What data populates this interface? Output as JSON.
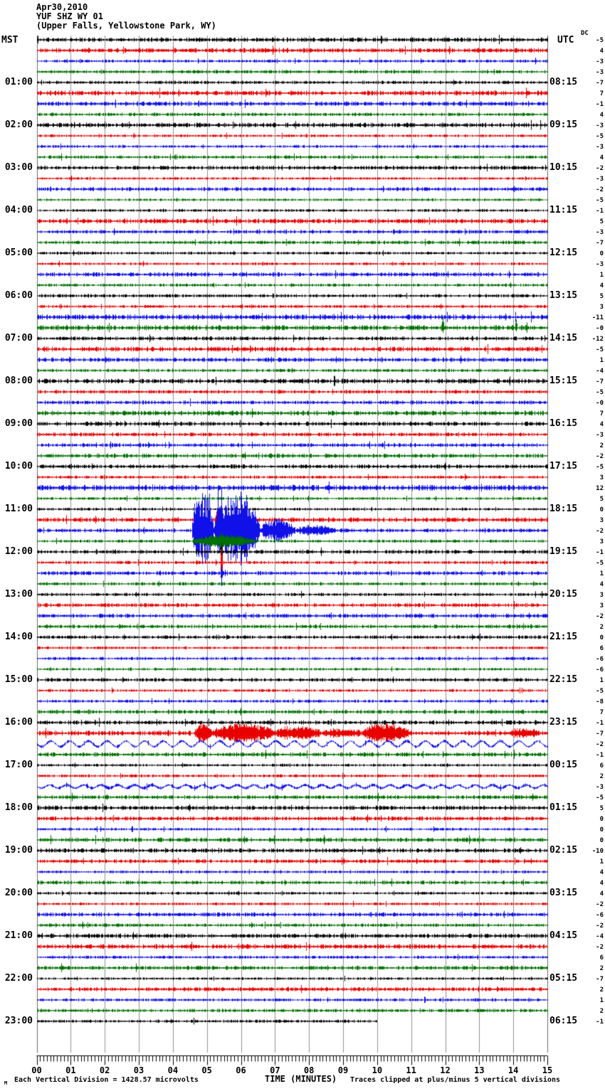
{
  "title": {
    "date": "Apr30,2010",
    "station": "YUF SHZ WY 01",
    "location": "(Upper Falls, Yellowstone Park, WY)"
  },
  "labels": {
    "left_header": "MST",
    "right_header": "UTC",
    "dc_header": "DC",
    "corner_mark": "M"
  },
  "axis": {
    "title": "TIME (MINUTES)",
    "ticks": [
      "00",
      "01",
      "02",
      "03",
      "04",
      "05",
      "06",
      "07",
      "08",
      "09",
      "10",
      "11",
      "12",
      "13",
      "14",
      "15"
    ],
    "minutes": 15,
    "minor_per_minute": 10
  },
  "footer": {
    "left": "Each Vertical Division = 1428.57 microvolts",
    "right": "Traces clipped at plus/minus 5 vertical divisions"
  },
  "chart_data": {
    "type": "line",
    "kind": "helicorder-seismogram",
    "title": "YUF SHZ WY 01 (Upper Falls, Yellowstone Park, WY) Apr30,2010",
    "xlabel": "TIME (MINUTES)",
    "x_range": [
      0,
      15
    ],
    "row_minutes": 15,
    "rows_per_hour": 4,
    "clip_divisions": 5,
    "microvolts_per_division": "1428.57",
    "grid": true,
    "color_cycle": [
      "black",
      "red",
      "blue",
      "green"
    ],
    "trace_colors": {
      "black": "#000000",
      "red": "#e80000",
      "blue": "#1010e8",
      "green": "#007000"
    },
    "grid_color": "#909090",
    "notable_events": [
      {
        "row": 46,
        "mst": "11:30",
        "utc_end": "18:45",
        "desc": "large clipped earthquake burst, minutes 4.5-8.8, spike crossing rows below"
      },
      {
        "row": 65,
        "mst": "16:15",
        "utc_end": "23:30",
        "desc": "extended clipped burst, minutes 4.6-11 with tail activity"
      },
      {
        "row": 66,
        "mst": "16:30",
        "desc": "long-period wavy coda across full row"
      },
      {
        "row": 27,
        "mst": "06:45",
        "desc": "two small spikes near minutes 11.9 and 14.1"
      },
      {
        "row": 92,
        "mst": "23:00",
        "desc": "final partial trace ends at minute 10"
      }
    ],
    "rows": [
      {
        "dc": "-5"
      },
      {
        "dc": "4"
      },
      {
        "dc": "-3"
      },
      {
        "dc": "-3"
      },
      {
        "dc": "-7",
        "l": "01:00",
        "r": "08:15"
      },
      {
        "dc": "7"
      },
      {
        "dc": "-1"
      },
      {
        "dc": "4"
      },
      {
        "dc": "-3",
        "l": "02:00",
        "r": "09:15"
      },
      {
        "dc": "-5"
      },
      {
        "dc": "-3"
      },
      {
        "dc": "4"
      },
      {
        "dc": "-2",
        "l": "03:00",
        "r": "10:15"
      },
      {
        "dc": "-3"
      },
      {
        "dc": "-2"
      },
      {
        "dc": "-5"
      },
      {
        "dc": "-1",
        "l": "04:00",
        "r": "11:15"
      },
      {
        "dc": "5"
      },
      {
        "dc": "-3"
      },
      {
        "dc": "-7"
      },
      {
        "dc": "0",
        "l": "05:00",
        "r": "12:15"
      },
      {
        "dc": "-3"
      },
      {
        "dc": "1"
      },
      {
        "dc": "4"
      },
      {
        "dc": "5",
        "l": "06:00",
        "r": "13:15"
      },
      {
        "dc": "3"
      },
      {
        "dc": "-11",
        "na": 2.4
      },
      {
        "dc": "-0",
        "na": 2.3,
        "events": [
          {
            "type": "spike",
            "t": 11.92,
            "up": 16,
            "down": 7
          },
          {
            "type": "spike",
            "t": 14.07,
            "up": 12,
            "down": 5
          }
        ]
      },
      {
        "dc": "-12",
        "l": "07:00",
        "r": "14:15"
      },
      {
        "dc": "-5"
      },
      {
        "dc": "1"
      },
      {
        "dc": "-4"
      },
      {
        "dc": "-7",
        "l": "08:00",
        "r": "15:15"
      },
      {
        "dc": "-5"
      },
      {
        "dc": "-0"
      },
      {
        "dc": "7"
      },
      {
        "dc": "4",
        "l": "09:00",
        "r": "16:15"
      },
      {
        "dc": "-3"
      },
      {
        "dc": "2"
      },
      {
        "dc": "-2"
      },
      {
        "dc": "-5",
        "l": "10:00",
        "r": "17:15"
      },
      {
        "dc": "3"
      },
      {
        "dc": "12",
        "na": 2.6
      },
      {
        "dc": "5"
      },
      {
        "dc": "0",
        "l": "11:00",
        "r": "18:15"
      },
      {
        "dc": "3",
        "events": [
          {
            "type": "spike",
            "t": 5.28,
            "up": 12,
            "down": 6
          }
        ]
      },
      {
        "dc": "-2",
        "na": 1.8,
        "events": [
          {
            "type": "burst",
            "t0": 4.55,
            "t1": 5.2,
            "amp": 52,
            "cap": 62
          },
          {
            "type": "burst",
            "t0": 5.2,
            "t1": 6.55,
            "amp": 58,
            "cap": 62
          },
          {
            "type": "burst",
            "t0": 6.55,
            "t1": 7.6,
            "amp": 16
          },
          {
            "type": "burst",
            "t0": 7.6,
            "t1": 8.8,
            "amp": 6
          },
          {
            "type": "spike",
            "t": 5.42,
            "up": 60,
            "down": 78
          },
          {
            "type": "spike",
            "t": 5.33,
            "up": 58,
            "down": 26
          },
          {
            "type": "spike",
            "t": 4.92,
            "up": 46,
            "down": 38
          },
          {
            "type": "spike",
            "t": 5.08,
            "up": 52,
            "down": 24
          },
          {
            "type": "spike",
            "t": 4.63,
            "up": 38,
            "down": 20
          }
        ]
      },
      {
        "dc": "3",
        "events": [
          {
            "type": "burst",
            "t0": 4.55,
            "t1": 6.4,
            "amp": 9
          },
          {
            "type": "spike",
            "t": 5.42,
            "up": 13,
            "down": 30
          }
        ]
      },
      {
        "dc": "-1",
        "l": "12:00",
        "r": "19:15",
        "events": [
          {
            "type": "spike",
            "t": 5.42,
            "up": 12,
            "down": 18
          }
        ]
      },
      {
        "dc": "-5",
        "events": [
          {
            "type": "spike",
            "t": 5.42,
            "up": 20,
            "down": 26
          }
        ]
      },
      {
        "dc": "1",
        "events": [
          {
            "type": "spike",
            "t": 5.42,
            "up": 10,
            "down": 12
          }
        ]
      },
      {
        "dc": "4"
      },
      {
        "dc": "3",
        "l": "13:00",
        "r": "20:15"
      },
      {
        "dc": "3"
      },
      {
        "dc": "-2"
      },
      {
        "dc": "2"
      },
      {
        "dc": "0",
        "l": "14:00",
        "r": "21:15"
      },
      {
        "dc": "6"
      },
      {
        "dc": "-6"
      },
      {
        "dc": "-6"
      },
      {
        "dc": "1",
        "l": "15:00",
        "r": "22:15"
      },
      {
        "dc": "-5"
      },
      {
        "dc": "-8"
      },
      {
        "dc": "7"
      },
      {
        "dc": "-1",
        "l": "16:00",
        "r": "23:15"
      },
      {
        "dc": "-7",
        "na": 2.2,
        "events": [
          {
            "type": "burst",
            "t0": 4.62,
            "t1": 5.15,
            "amp": 12,
            "cap": 13
          },
          {
            "type": "burst",
            "t0": 5.15,
            "t1": 7.0,
            "amp": 13,
            "cap": 13
          },
          {
            "type": "burst",
            "t0": 7.0,
            "t1": 8.35,
            "amp": 8,
            "cap": 13
          },
          {
            "type": "burst",
            "t0": 8.35,
            "t1": 9.55,
            "amp": 4
          },
          {
            "type": "burst",
            "t0": 9.55,
            "t1": 10.95,
            "amp": 13,
            "cap": 13
          },
          {
            "type": "burst",
            "t0": 13.85,
            "t1": 14.75,
            "amp": 5
          }
        ]
      },
      {
        "dc": "-2",
        "na": 1.3,
        "events": [
          {
            "type": "sine",
            "amp": 4,
            "period": 0.55
          }
        ]
      },
      {
        "dc": "-1",
        "na": 2.0
      },
      {
        "dc": "6",
        "l": "17:00",
        "r": "00:15"
      },
      {
        "dc": "2"
      },
      {
        "dc": "-3",
        "na": 1.5,
        "events": [
          {
            "type": "sine",
            "amp": 2.2,
            "period": 0.5
          }
        ]
      },
      {
        "dc": "-5"
      },
      {
        "dc": "5",
        "l": "18:00",
        "r": "01:15"
      },
      {
        "dc": "0"
      },
      {
        "dc": "0"
      },
      {
        "dc": "0"
      },
      {
        "dc": "-10",
        "l": "19:00",
        "r": "02:15"
      },
      {
        "dc": "1"
      },
      {
        "dc": "4"
      },
      {
        "dc": "4"
      },
      {
        "dc": "4",
        "l": "20:00",
        "r": "03:15"
      },
      {
        "dc": "-2"
      },
      {
        "dc": "-6"
      },
      {
        "dc": "-2"
      },
      {
        "dc": "-4",
        "l": "21:00",
        "r": "04:15"
      },
      {
        "dc": "-2"
      },
      {
        "dc": "6"
      },
      {
        "dc": "2"
      },
      {
        "dc": "-7",
        "l": "22:00",
        "r": "05:15"
      },
      {
        "dc": "2"
      },
      {
        "dc": "1"
      },
      {
        "dc": "2"
      },
      {
        "dc": "-1",
        "l": "23:00",
        "r": "06:15",
        "end": 10
      }
    ]
  }
}
